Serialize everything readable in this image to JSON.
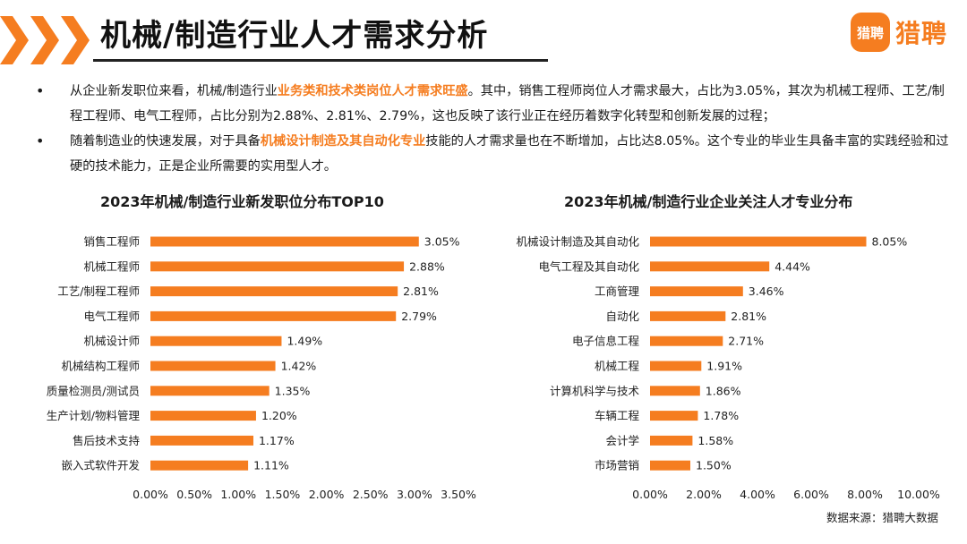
{
  "header": {
    "title": "机械/制造行业人才需求分析",
    "brand_badge": "猎聘",
    "brand_name": "猎聘"
  },
  "bullets": [
    {
      "pre": "从企业新发职位来看，机械/制造行业",
      "highlight": "业务类和技术类岗位人才需求旺盛",
      "post": "。其中，销售工程师岗位人才需求最大，占比为3.05%，其次为机械工程师、工艺/制程工程师、电气工程师，占比分别为2.88%、2.81%、2.79%，这也反映了该行业正在经历着数字化转型和创新发展的过程；"
    },
    {
      "pre": "随着制造业的快速发展，对于具备",
      "highlight": "机械设计制造及其自动化专业",
      "post": "技能的人才需求量也在不断增加，占比达8.05%。这个专业的毕业生具备丰富的实践经验和过硬的技术能力，正是企业所需要的实用型人才。"
    }
  ],
  "colors": {
    "accent": "#f57d20",
    "text": "#1a1a1a"
  },
  "chart_data": [
    {
      "type": "bar",
      "orientation": "horizontal",
      "title": "2023年机械/制造行业新发职位分布TOP10",
      "categories": [
        "销售工程师",
        "机械工程师",
        "工艺/制程工程师",
        "电气工程师",
        "机械设计师",
        "机械结构工程师",
        "质量检测员/测试员",
        "生产计划/物料管理",
        "售后技术支持",
        "嵌入式软件开发"
      ],
      "values": [
        3.05,
        2.88,
        2.81,
        2.79,
        1.49,
        1.42,
        1.35,
        1.2,
        1.17,
        1.11
      ],
      "value_labels": [
        "3.05%",
        "2.88%",
        "2.81%",
        "2.79%",
        "1.49%",
        "1.42%",
        "1.35%",
        "1.20%",
        "1.17%",
        "1.11%"
      ],
      "xlim": [
        0,
        3.5
      ],
      "ticks": [
        0,
        0.5,
        1,
        1.5,
        2,
        2.5,
        3,
        3.5
      ],
      "tick_labels": [
        "0.00%",
        "0.50%",
        "1.00%",
        "1.50%",
        "2.00%",
        "2.50%",
        "3.00%",
        "3.50%"
      ],
      "grid": false,
      "color": "#f57d20"
    },
    {
      "type": "bar",
      "orientation": "horizontal",
      "title": "2023年机械/制造行业企业关注人才专业分布",
      "categories": [
        "机械设计制造及其自动化",
        "电气工程及其自动化",
        "工商管理",
        "自动化",
        "电子信息工程",
        "机械工程",
        "计算机科学与技术",
        "车辆工程",
        "会计学",
        "市场营销"
      ],
      "values": [
        8.05,
        4.44,
        3.46,
        2.81,
        2.71,
        1.91,
        1.86,
        1.78,
        1.58,
        1.5
      ],
      "value_labels": [
        "8.05%",
        "4.44%",
        "3.46%",
        "2.81%",
        "2.71%",
        "1.91%",
        "1.86%",
        "1.78%",
        "1.58%",
        "1.50%"
      ],
      "xlim": [
        0,
        10
      ],
      "ticks": [
        0,
        2,
        4,
        6,
        8,
        10
      ],
      "tick_labels": [
        "0.00%",
        "2.00%",
        "4.00%",
        "6.00%",
        "8.00%",
        "10.00%"
      ],
      "grid": false,
      "color": "#f57d20"
    }
  ],
  "source": "数据来源：猎聘大数据"
}
